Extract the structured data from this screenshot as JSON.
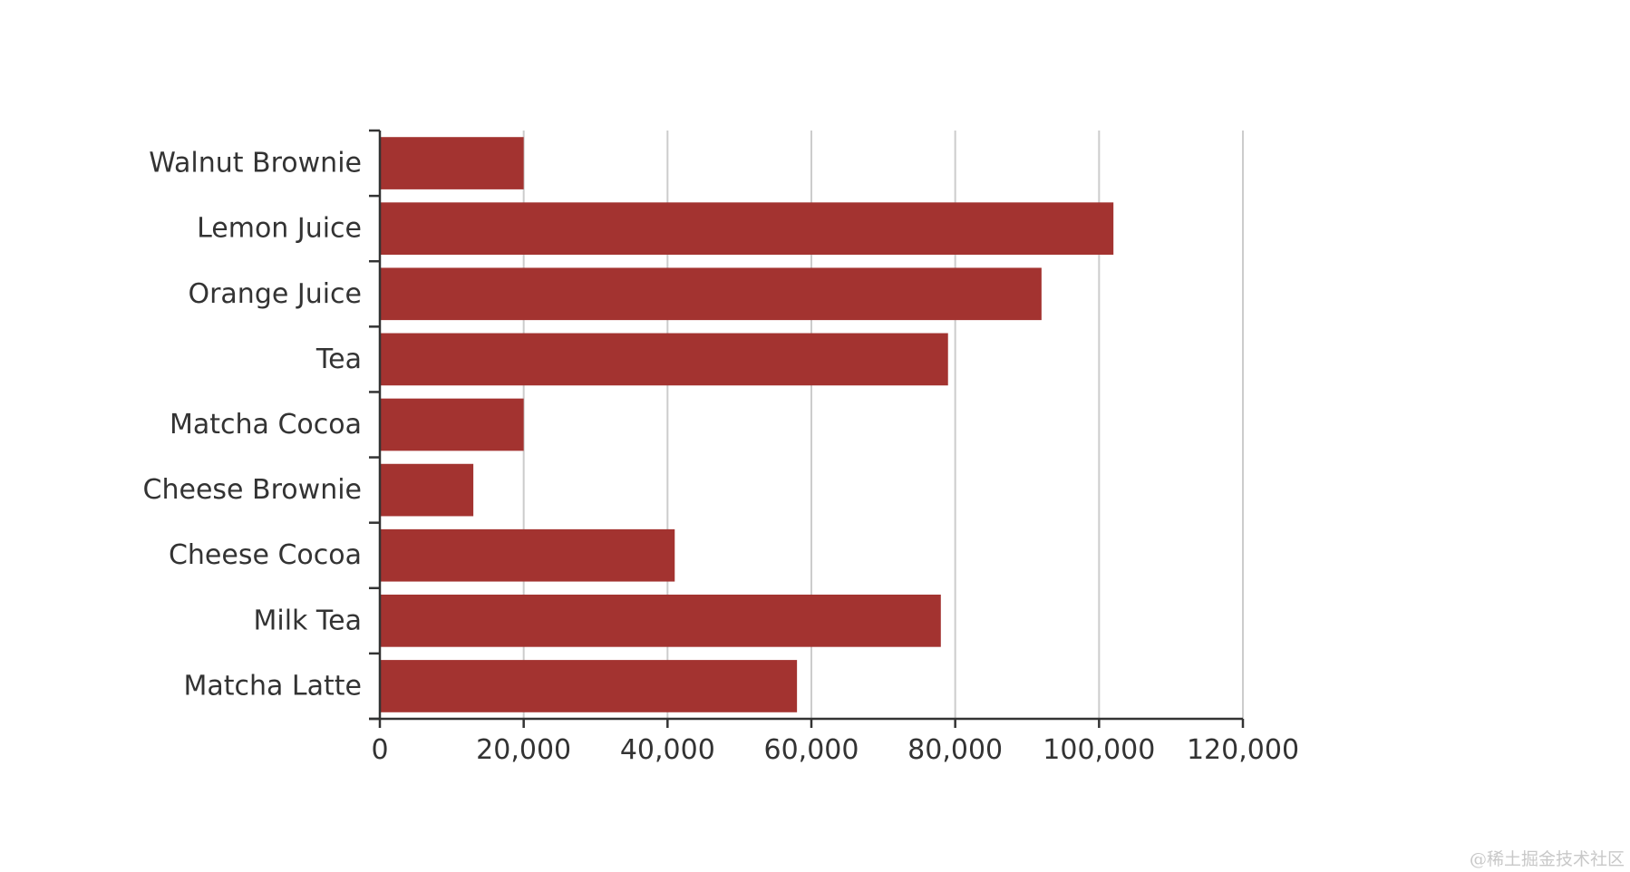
{
  "chart_data": {
    "type": "bar",
    "orientation": "horizontal",
    "categories": [
      "Walnut Brownie",
      "Lemon Juice",
      "Orange Juice",
      "Tea",
      "Matcha Cocoa",
      "Cheese Brownie",
      "Cheese Cocoa",
      "Milk Tea",
      "Matcha Latte"
    ],
    "values": [
      20000,
      102000,
      92000,
      79000,
      20000,
      13000,
      41000,
      78000,
      58000
    ],
    "title": "",
    "xlabel": "",
    "ylabel": "",
    "xlim": [
      0,
      120000
    ],
    "x_ticks": [
      0,
      20000,
      40000,
      60000,
      80000,
      100000,
      120000
    ],
    "x_tick_labels": [
      "0",
      "20,000",
      "40,000",
      "60,000",
      "80,000",
      "100,000",
      "120,000"
    ],
    "grid": "vertical",
    "legend": "none",
    "bar_color": "#a33330"
  },
  "watermark": "@稀土掘金技术社区"
}
